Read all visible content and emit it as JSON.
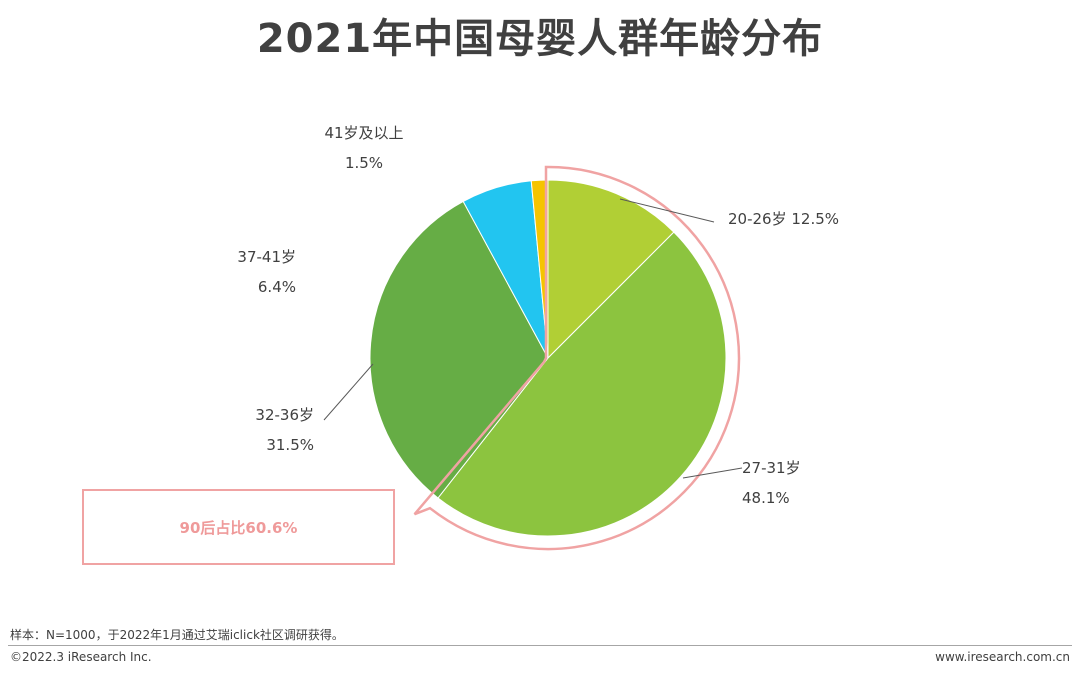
{
  "title": "2021年中国母婴人群年龄分布",
  "chart_data": {
    "type": "pie",
    "title": "2021年中国母婴人群年龄分布",
    "slices": [
      {
        "label": "20-26岁",
        "value": 12.5,
        "value_label": "12.5%",
        "color": "#b1cf35"
      },
      {
        "label": "27-31岁",
        "value": 48.1,
        "value_label": "48.1%",
        "color": "#8cc43f"
      },
      {
        "label": "32-36岁",
        "value": 31.5,
        "value_label": "31.5%",
        "color": "#66ad45"
      },
      {
        "label": "37-41岁",
        "value": 6.4,
        "value_label": "6.4%",
        "color": "#22c5f0"
      },
      {
        "label": "41岁及以上",
        "value": 1.5,
        "value_label": "1.5%",
        "color": "#f5c400"
      }
    ],
    "start": "12 o'clock",
    "direction": "clockwise",
    "highlight": {
      "slices": [
        "20-26岁",
        "27-31岁"
      ],
      "color": "#f0a3a3"
    }
  },
  "callout": {
    "text": "90后占比60.6%"
  },
  "footer": {
    "note": "样本：N=1000，于2022年1月通过艾瑞iclick社区调研获得。",
    "copyright": "©2022.3 iResearch Inc.",
    "website": "www.iresearch.com.cn"
  }
}
